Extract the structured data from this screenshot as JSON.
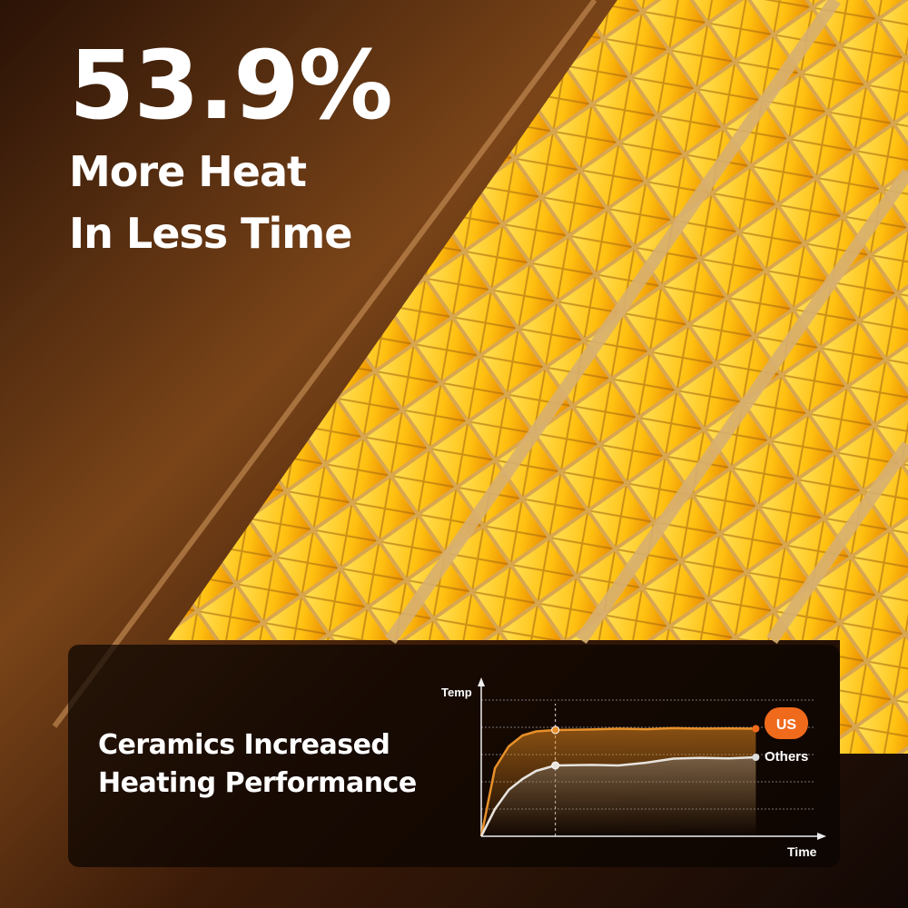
{
  "headline": {
    "stat": "53.9%",
    "line1": "More Heat",
    "line2": "In Less Time"
  },
  "card": {
    "line1": "Ceramics Increased",
    "line2": "Heating Performance"
  },
  "colors": {
    "accent": "#f06a1c",
    "us_line": "#e8902a",
    "others_line": "#e8e4de",
    "heater": "#ffc21a"
  },
  "chart_data": {
    "type": "line",
    "title": "",
    "xlabel": "Time",
    "ylabel": "Temp",
    "grid": true,
    "legend": "right (end labels)",
    "x": [
      0,
      0.5,
      1,
      1.5,
      2,
      2.7,
      4,
      5,
      6,
      7,
      8,
      9,
      10
    ],
    "series": [
      {
        "name": "US",
        "values": [
          0,
          2.5,
          3.3,
          3.7,
          3.85,
          3.9,
          3.92,
          3.95,
          3.93,
          3.97,
          3.95,
          3.96,
          3.95
        ]
      },
      {
        "name": "Others",
        "values": [
          0,
          1.0,
          1.7,
          2.1,
          2.4,
          2.6,
          2.62,
          2.6,
          2.7,
          2.85,
          2.88,
          2.86,
          2.9
        ]
      }
    ],
    "marker_x": 2.7,
    "xlim": [
      0,
      12.5
    ],
    "ylim": [
      0,
      5.7
    ]
  }
}
